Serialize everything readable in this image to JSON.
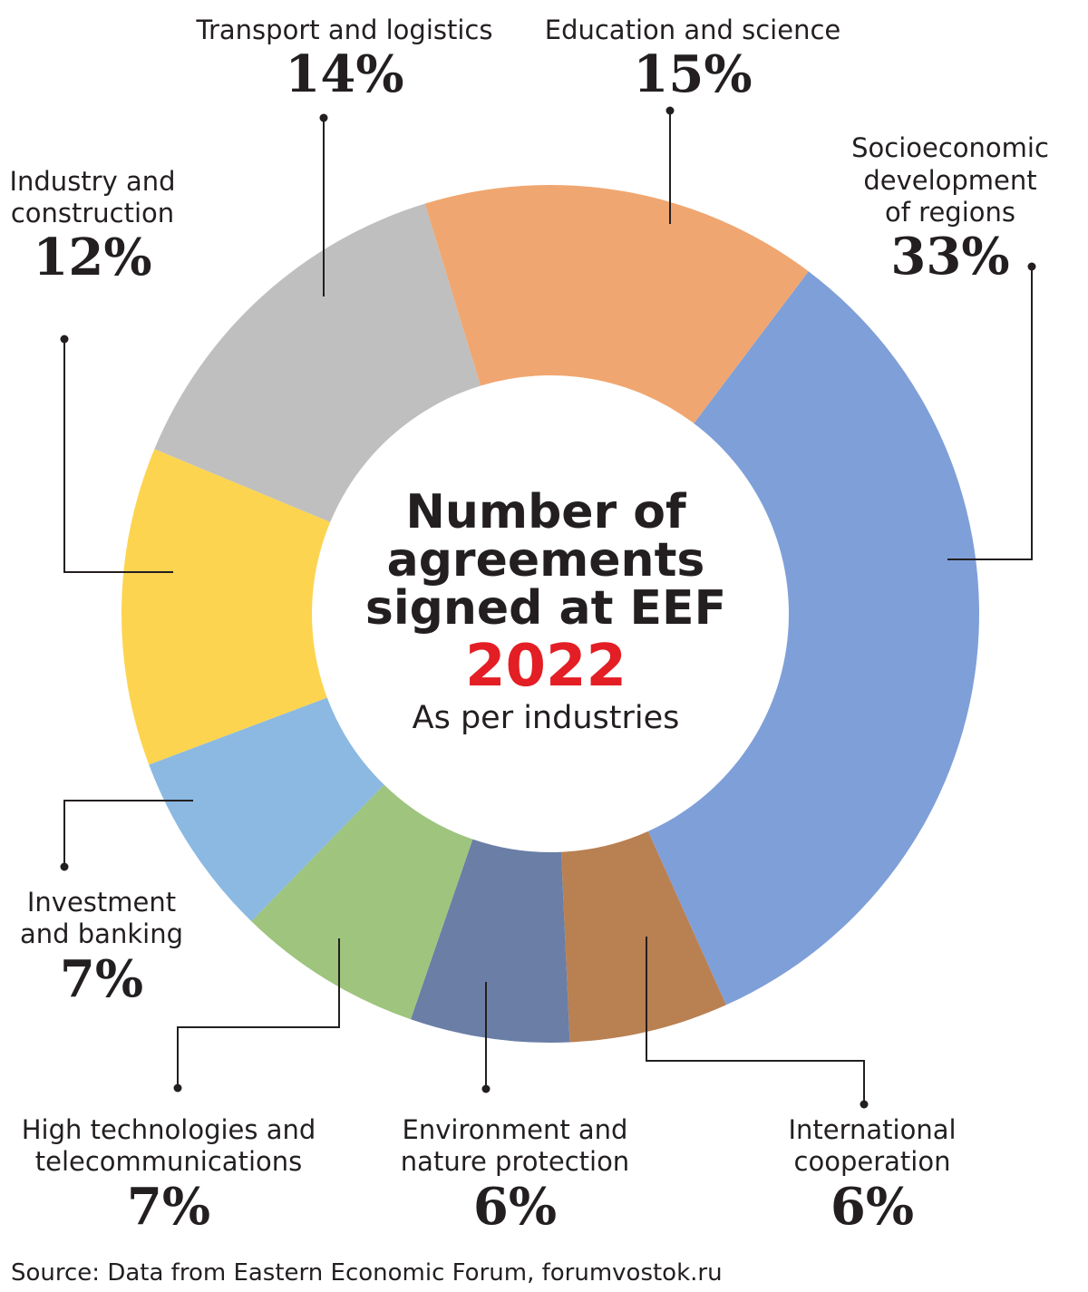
{
  "chart_data": {
    "type": "pie",
    "title": "Number of agreements signed at EEF",
    "year": "2022",
    "subtitle": "As per industries",
    "unit": "%",
    "slices": [
      {
        "label_lines": [
          "Socioeconomic",
          "development",
          "of regions"
        ],
        "value": 33,
        "display": "33%",
        "color": "#7f9fd8"
      },
      {
        "label_lines": [
          "International",
          "cooperation"
        ],
        "value": 6,
        "display": "6%",
        "color": "#b98052"
      },
      {
        "label_lines": [
          "Environment and",
          "nature protection"
        ],
        "value": 6,
        "display": "6%",
        "color": "#6a7ea6"
      },
      {
        "label_lines": [
          "High technologies and",
          "telecommunications"
        ],
        "value": 7,
        "display": "7%",
        "color": "#9ec47e"
      },
      {
        "label_lines": [
          "Investment",
          "and banking"
        ],
        "value": 7,
        "display": "7%",
        "color": "#8bb9e2"
      },
      {
        "label_lines": [
          "Industry and",
          "construction"
        ],
        "value": 12,
        "display": "12%",
        "color": "#fdd44f"
      },
      {
        "label_lines": [
          "Transport and logistics"
        ],
        "value": 14,
        "display": "14%",
        "color": "#bfbfbf"
      },
      {
        "label_lines": [
          "Education and science"
        ],
        "value": 15,
        "display": "15%",
        "color": "#f0a670"
      }
    ]
  },
  "source": "Source: Data from Eastern Economic Forum, forumvostok.ru"
}
